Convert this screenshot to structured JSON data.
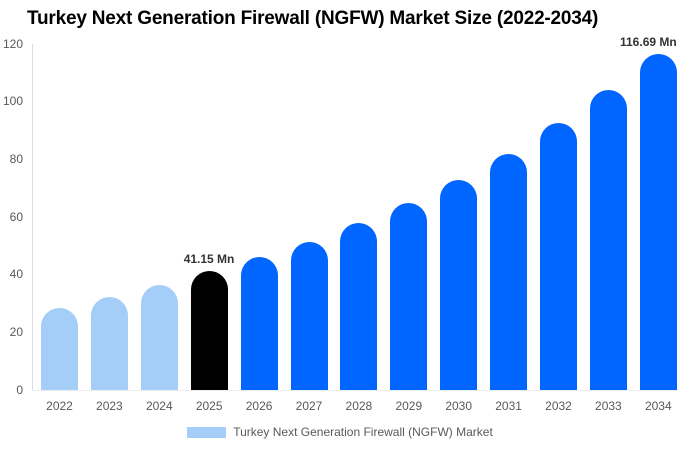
{
  "title": "Turkey Next Generation Firewall (NGFW) Market Size (2022-2034)",
  "colors": {
    "background": "#ffffff",
    "bar_light": "#a4cdf8",
    "bar_primary": "#0066ff",
    "bar_highlight": "#000000",
    "axis_text": "#595959",
    "axis_line": "#dcdcdc",
    "annotation_text": "#333333",
    "title_text": "#000000"
  },
  "legend": {
    "label": "Turkey Next Generation Firewall (NGFW) Market"
  },
  "chart_data": {
    "type": "bar",
    "title": "Turkey Next Generation Firewall (NGFW) Market Size (2022-2034)",
    "categories": [
      "2022",
      "2023",
      "2024",
      "2025",
      "2026",
      "2027",
      "2028",
      "2029",
      "2030",
      "2031",
      "2032",
      "2033",
      "2034"
    ],
    "values": [
      28.5,
      32.3,
      36.4,
      41.15,
      46,
      51.5,
      58,
      65,
      73,
      82,
      92.5,
      104,
      116.69
    ],
    "unit": "Mn",
    "xlabel": "",
    "ylabel": "",
    "ylim": [
      0,
      120
    ],
    "yticks": [
      0,
      20,
      40,
      60,
      80,
      100,
      120
    ],
    "grid": false,
    "legend_position": "bottom",
    "bar_styles": [
      "light",
      "light",
      "light",
      "highlight",
      "primary",
      "primary",
      "primary",
      "primary",
      "primary",
      "primary",
      "primary",
      "primary",
      "primary"
    ],
    "annotations": [
      {
        "category": "2025",
        "text": "41.15 Mn"
      },
      {
        "category": "2034",
        "text": "116.69 Mn"
      }
    ]
  }
}
